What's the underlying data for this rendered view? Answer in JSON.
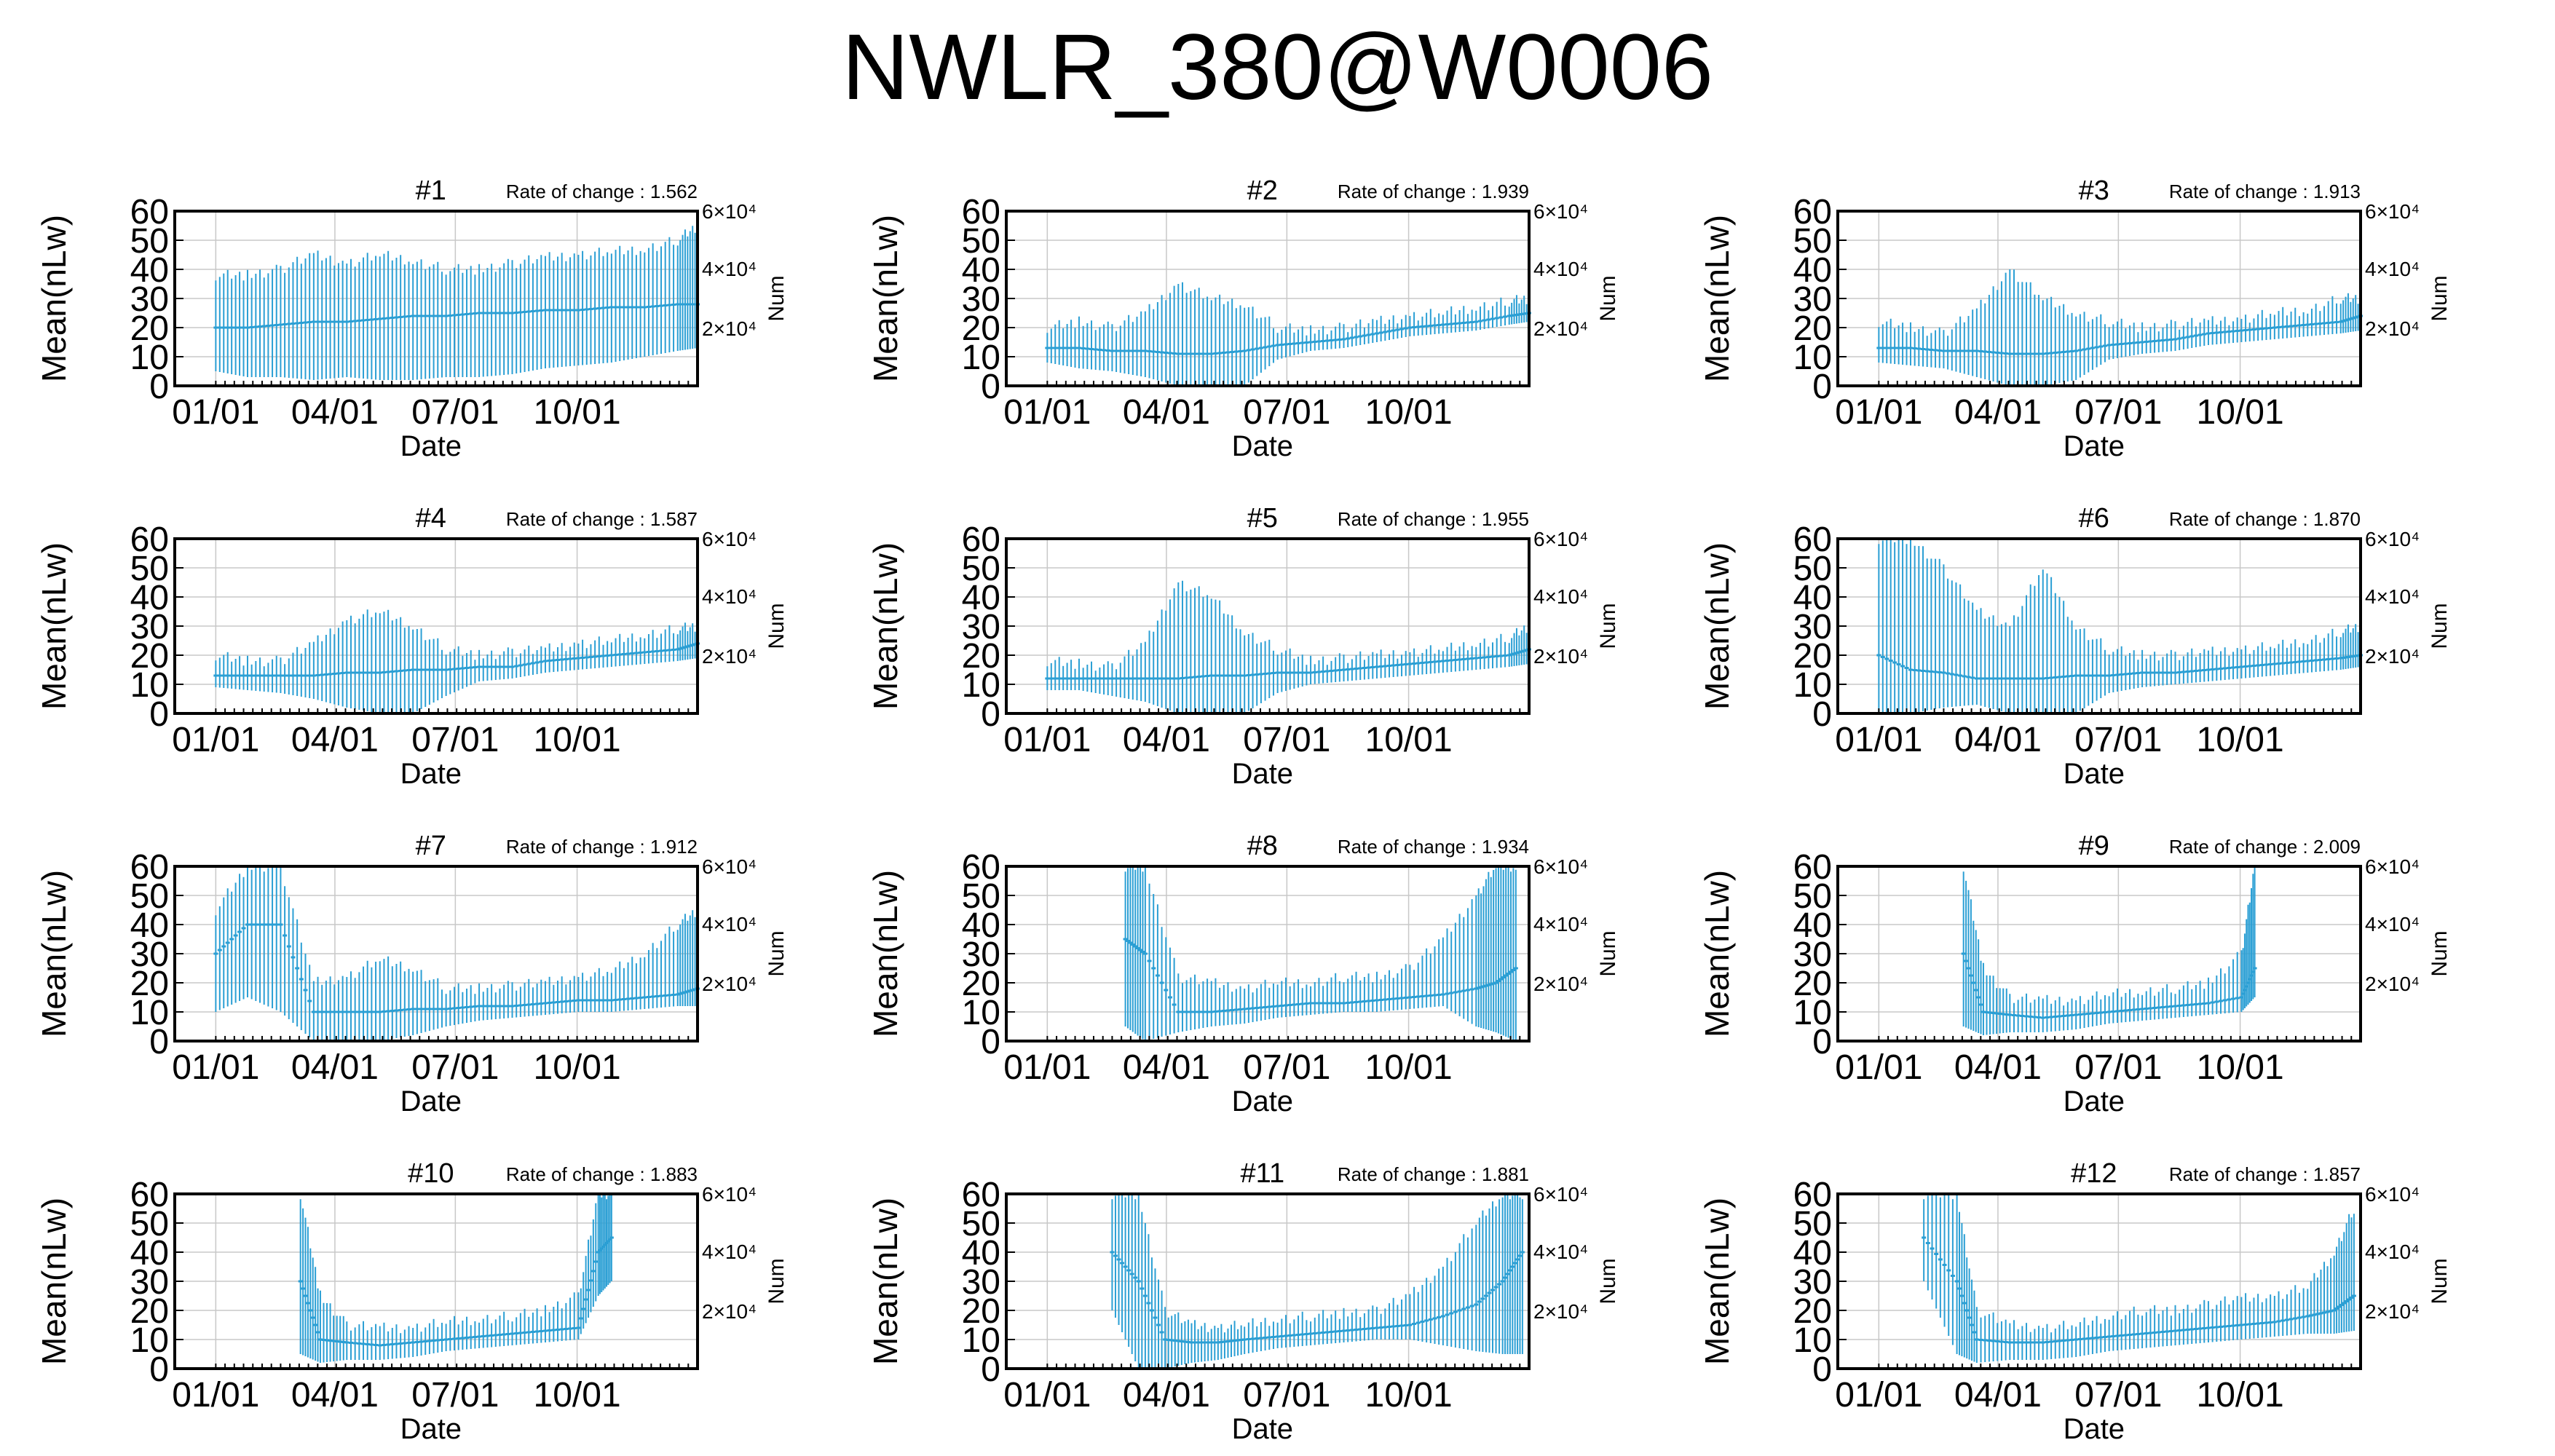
{
  "page": {
    "title": "NWLR_380@W0006"
  },
  "colors": {
    "series": "#2b9fd4",
    "frame": "#000000",
    "grid": "#c8c8c8"
  },
  "chart_data": [
    {
      "type": "line",
      "title": "#1",
      "annotation": "Rate of change : 1.562",
      "xlabel": "Date",
      "ylabel": "Mean(nLw)",
      "y2label": "Num",
      "x_ticks": [
        "01/01",
        "04/01",
        "07/01",
        "10/01"
      ],
      "y_ticks": [
        0,
        10,
        20,
        30,
        40,
        50,
        60
      ],
      "y2_ticks": [
        "2×10⁴",
        "4×10⁴",
        "6×10⁴"
      ],
      "ylim": [
        0,
        60
      ],
      "grid": true,
      "series": [
        {
          "x": [
            1,
            25,
            50,
            75,
            100,
            125,
            150,
            175,
            200,
            225,
            250,
            275,
            300,
            325,
            350,
            365
          ],
          "y": [
            20,
            20,
            21,
            22,
            22,
            23,
            24,
            24,
            25,
            25,
            26,
            26,
            27,
            27,
            28,
            28
          ],
          "low": [
            5,
            3,
            3,
            2,
            3,
            2,
            2,
            3,
            3,
            4,
            6,
            7,
            8,
            10,
            12,
            13
          ],
          "high": [
            38,
            38,
            40,
            45,
            42,
            45,
            43,
            40,
            40,
            42,
            44,
            45,
            46,
            47,
            50,
            55
          ]
        }
      ]
    },
    {
      "type": "line",
      "title": "#2",
      "annotation": "Rate of change : 1.939",
      "xlabel": "Date",
      "ylabel": "Mean(nLw)",
      "y2label": "Num",
      "x_ticks": [
        "01/01",
        "04/01",
        "07/01",
        "10/01"
      ],
      "y_ticks": [
        0,
        10,
        20,
        30,
        40,
        50,
        60
      ],
      "y2_ticks": [
        "2×10⁴",
        "4×10⁴",
        "6×10⁴"
      ],
      "ylim": [
        0,
        60
      ],
      "grid": true,
      "series": [
        {
          "x": [
            1,
            25,
            50,
            75,
            100,
            125,
            150,
            175,
            200,
            225,
            250,
            275,
            300,
            325,
            350,
            365
          ],
          "y": [
            13,
            13,
            12,
            12,
            11,
            11,
            12,
            14,
            15,
            16,
            18,
            20,
            21,
            22,
            24,
            25
          ],
          "low": [
            8,
            6,
            5,
            3,
            0,
            0,
            0,
            9,
            12,
            13,
            15,
            17,
            18,
            19,
            21,
            22
          ],
          "high": [
            20,
            22,
            20,
            25,
            35,
            30,
            28,
            20,
            19,
            20,
            22,
            24,
            25,
            27,
            29,
            30
          ]
        }
      ]
    },
    {
      "type": "line",
      "title": "#3",
      "annotation": "Rate of change : 1.913",
      "xlabel": "Date",
      "ylabel": "Mean(nLw)",
      "y2label": "Num",
      "x_ticks": [
        "01/01",
        "04/01",
        "07/01",
        "10/01"
      ],
      "y_ticks": [
        0,
        10,
        20,
        30,
        40,
        50,
        60
      ],
      "y2_ticks": [
        "2×10⁴",
        "4×10⁴",
        "6×10⁴"
      ],
      "ylim": [
        0,
        60
      ],
      "grid": true,
      "series": [
        {
          "x": [
            1,
            25,
            50,
            75,
            100,
            125,
            150,
            175,
            200,
            225,
            250,
            275,
            300,
            325,
            350,
            365
          ],
          "y": [
            13,
            13,
            12,
            12,
            11,
            11,
            12,
            14,
            15,
            16,
            18,
            19,
            20,
            21,
            22,
            24
          ],
          "low": [
            8,
            7,
            6,
            3,
            0,
            0,
            2,
            9,
            11,
            12,
            14,
            15,
            16,
            17,
            18,
            19
          ],
          "high": [
            22,
            20,
            18,
            26,
            40,
            30,
            25,
            22,
            20,
            21,
            22,
            23,
            25,
            26,
            30,
            30
          ]
        }
      ]
    },
    {
      "type": "line",
      "title": "#4",
      "annotation": "Rate of change : 1.587",
      "xlabel": "Date",
      "ylabel": "Mean(nLw)",
      "y2label": "Num",
      "x_ticks": [
        "01/01",
        "04/01",
        "07/01",
        "10/01"
      ],
      "y_ticks": [
        0,
        10,
        20,
        30,
        40,
        50,
        60
      ],
      "y2_ticks": [
        "2×10⁴",
        "4×10⁴",
        "6×10⁴"
      ],
      "ylim": [
        0,
        60
      ],
      "grid": true,
      "series": [
        {
          "x": [
            1,
            25,
            50,
            75,
            100,
            125,
            150,
            175,
            200,
            225,
            250,
            275,
            300,
            325,
            350,
            365
          ],
          "y": [
            13,
            13,
            13,
            13,
            14,
            14,
            15,
            15,
            16,
            16,
            18,
            19,
            20,
            21,
            22,
            24
          ],
          "low": [
            9,
            8,
            7,
            5,
            2,
            0,
            0,
            6,
            11,
            12,
            14,
            15,
            16,
            17,
            18,
            19
          ],
          "high": [
            20,
            18,
            18,
            24,
            32,
            35,
            30,
            22,
            20,
            21,
            22,
            24,
            25,
            27,
            29,
            30
          ]
        }
      ]
    },
    {
      "type": "line",
      "title": "#5",
      "annotation": "Rate of change : 1.955",
      "xlabel": "Date",
      "ylabel": "Mean(nLw)",
      "y2label": "Num",
      "x_ticks": [
        "01/01",
        "04/01",
        "07/01",
        "10/01"
      ],
      "y_ticks": [
        0,
        10,
        20,
        30,
        40,
        50,
        60
      ],
      "y2_ticks": [
        "2×10⁴",
        "4×10⁴",
        "6×10⁴"
      ],
      "ylim": [
        0,
        60
      ],
      "grid": true,
      "series": [
        {
          "x": [
            1,
            25,
            50,
            75,
            100,
            125,
            150,
            175,
            200,
            225,
            250,
            275,
            300,
            325,
            350,
            365
          ],
          "y": [
            12,
            12,
            12,
            12,
            12,
            13,
            13,
            14,
            14,
            15,
            16,
            17,
            18,
            19,
            20,
            22
          ],
          "low": [
            8,
            8,
            6,
            4,
            0,
            0,
            0,
            7,
            10,
            11,
            12,
            13,
            14,
            15,
            16,
            17
          ],
          "high": [
            18,
            17,
            16,
            24,
            45,
            40,
            28,
            22,
            18,
            19,
            20,
            21,
            22,
            24,
            26,
            30
          ]
        }
      ]
    },
    {
      "type": "line",
      "title": "#6",
      "annotation": "Rate of change : 1.870",
      "xlabel": "Date",
      "ylabel": "Mean(nLw)",
      "y2label": "Num",
      "x_ticks": [
        "01/01",
        "04/01",
        "07/01",
        "10/01"
      ],
      "y_ticks": [
        0,
        10,
        20,
        30,
        40,
        50,
        60
      ],
      "y2_ticks": [
        "2×10⁴",
        "4×10⁴",
        "6×10⁴"
      ],
      "ylim": [
        0,
        60
      ],
      "grid": true,
      "series": [
        {
          "x": [
            1,
            25,
            50,
            75,
            100,
            125,
            150,
            175,
            200,
            225,
            250,
            275,
            300,
            325,
            350,
            365
          ],
          "y": [
            20,
            15,
            14,
            12,
            12,
            12,
            13,
            13,
            14,
            14,
            15,
            16,
            17,
            18,
            19,
            20
          ],
          "low": [
            0,
            0,
            2,
            3,
            0,
            0,
            0,
            7,
            9,
            10,
            11,
            12,
            13,
            14,
            15,
            16
          ],
          "high": [
            60,
            60,
            50,
            35,
            30,
            50,
            30,
            22,
            20,
            20,
            21,
            22,
            23,
            25,
            28,
            30
          ]
        }
      ]
    },
    {
      "type": "line",
      "title": "#7",
      "annotation": "Rate of change : 1.912",
      "xlabel": "Date",
      "ylabel": "Mean(nLw)",
      "y2label": "Num",
      "x_ticks": [
        "01/01",
        "04/01",
        "07/01",
        "10/01"
      ],
      "y_ticks": [
        0,
        10,
        20,
        30,
        40,
        50,
        60
      ],
      "y2_ticks": [
        "2×10⁴",
        "4×10⁴",
        "6×10⁴"
      ],
      "ylim": [
        0,
        60
      ],
      "grid": true,
      "series": [
        {
          "x": [
            1,
            25,
            50,
            75,
            100,
            125,
            150,
            175,
            200,
            225,
            250,
            275,
            300,
            325,
            350,
            365
          ],
          "y": [
            30,
            40,
            40,
            10,
            10,
            10,
            11,
            11,
            12,
            12,
            13,
            14,
            14,
            15,
            16,
            18
          ],
          "low": [
            10,
            15,
            10,
            0,
            0,
            0,
            2,
            5,
            7,
            8,
            9,
            10,
            10,
            11,
            12,
            12
          ],
          "high": [
            45,
            60,
            60,
            20,
            22,
            28,
            25,
            18,
            18,
            19,
            20,
            22,
            24,
            30,
            40,
            45
          ]
        }
      ]
    },
    {
      "type": "line",
      "title": "#8",
      "annotation": "Rate of change : 1.934",
      "xlabel": "Date",
      "ylabel": "Mean(nLw)",
      "y2label": "Num",
      "x_ticks": [
        "01/01",
        "04/01",
        "07/01",
        "10/01"
      ],
      "y_ticks": [
        0,
        10,
        20,
        30,
        40,
        50,
        60
      ],
      "y2_ticks": [
        "2×10⁴",
        "4×10⁴",
        "6×10⁴"
      ],
      "ylim": [
        0,
        60
      ],
      "grid": true,
      "series": [
        {
          "x": [
            60,
            75,
            100,
            125,
            150,
            175,
            200,
            225,
            250,
            275,
            300,
            325,
            340,
            355
          ],
          "y": [
            35,
            30,
            10,
            10,
            11,
            12,
            13,
            13,
            14,
            15,
            16,
            18,
            20,
            25
          ],
          "low": [
            5,
            0,
            3,
            5,
            6,
            8,
            9,
            10,
            10,
            11,
            12,
            5,
            3,
            0
          ],
          "high": [
            60,
            60,
            22,
            20,
            18,
            20,
            20,
            22,
            22,
            25,
            35,
            50,
            60,
            60
          ]
        }
      ]
    },
    {
      "type": "line",
      "title": "#9",
      "annotation": "Rate of change : 2.009",
      "xlabel": "Date",
      "ylabel": "Mean(nLw)",
      "y2label": "Num",
      "x_ticks": [
        "01/01",
        "04/01",
        "07/01",
        "10/01"
      ],
      "y_ticks": [
        0,
        10,
        20,
        30,
        40,
        50,
        60
      ],
      "y2_ticks": [
        "2×10⁴",
        "4×10⁴",
        "6×10⁴"
      ],
      "ylim": [
        0,
        60
      ],
      "grid": true,
      "series": [
        {
          "x": [
            65,
            80,
            100,
            125,
            150,
            175,
            200,
            225,
            250,
            275,
            285
          ],
          "y": [
            30,
            10,
            9,
            8,
            9,
            10,
            11,
            12,
            13,
            15,
            25
          ],
          "low": [
            5,
            2,
            3,
            3,
            4,
            6,
            7,
            8,
            9,
            10,
            15
          ],
          "high": [
            60,
            25,
            15,
            14,
            14,
            16,
            17,
            18,
            20,
            30,
            60
          ]
        }
      ]
    },
    {
      "type": "line",
      "title": "#10",
      "annotation": "Rate of change : 1.883",
      "xlabel": "Date",
      "ylabel": "Mean(nLw)",
      "y2label": "Num",
      "x_ticks": [
        "01/01",
        "04/01",
        "07/01",
        "10/01"
      ],
      "y_ticks": [
        0,
        10,
        20,
        30,
        40,
        50,
        60
      ],
      "y2_ticks": [
        "2×10⁴",
        "4×10⁴",
        "6×10⁴"
      ],
      "ylim": [
        0,
        60
      ],
      "grid": true,
      "series": [
        {
          "x": [
            65,
            80,
            100,
            125,
            150,
            175,
            200,
            225,
            250,
            275,
            290,
            300
          ],
          "y": [
            30,
            10,
            9,
            8,
            9,
            10,
            11,
            12,
            13,
            14,
            40,
            45
          ],
          "low": [
            5,
            2,
            3,
            3,
            4,
            6,
            7,
            8,
            9,
            10,
            25,
            30
          ],
          "high": [
            60,
            25,
            15,
            14,
            14,
            16,
            17,
            18,
            20,
            25,
            60,
            60
          ]
        }
      ]
    },
    {
      "type": "line",
      "title": "#11",
      "annotation": "Rate of change : 1.881",
      "xlabel": "Date",
      "ylabel": "Mean(nLw)",
      "y2label": "Num",
      "x_ticks": [
        "01/01",
        "04/01",
        "07/01",
        "10/01"
      ],
      "y_ticks": [
        0,
        10,
        20,
        30,
        40,
        50,
        60
      ],
      "y2_ticks": [
        "2×10⁴",
        "4×10⁴",
        "6×10⁴"
      ],
      "ylim": [
        0,
        60
      ],
      "grid": true,
      "series": [
        {
          "x": [
            50,
            70,
            90,
            110,
            130,
            150,
            175,
            200,
            225,
            250,
            275,
            300,
            325,
            345,
            360
          ],
          "y": [
            40,
            30,
            10,
            9,
            9,
            10,
            11,
            12,
            13,
            14,
            15,
            18,
            22,
            30,
            40
          ],
          "low": [
            20,
            0,
            0,
            2,
            3,
            5,
            7,
            8,
            9,
            10,
            10,
            8,
            6,
            5,
            5
          ],
          "high": [
            60,
            60,
            20,
            15,
            14,
            15,
            17,
            18,
            19,
            20,
            25,
            35,
            50,
            60,
            60
          ]
        }
      ]
    },
    {
      "type": "line",
      "title": "#12",
      "annotation": "Rate of change : 1.857",
      "xlabel": "Date",
      "ylabel": "Mean(nLw)",
      "y2label": "Num",
      "x_ticks": [
        "01/01",
        "04/01",
        "07/01",
        "10/01"
      ],
      "y_ticks": [
        0,
        10,
        20,
        30,
        40,
        50,
        60
      ],
      "y2_ticks": [
        "2×10⁴",
        "4×10⁴",
        "6×10⁴"
      ],
      "ylim": [
        0,
        60
      ],
      "grid": true,
      "series": [
        {
          "x": [
            35,
            60,
            75,
            100,
            125,
            150,
            175,
            200,
            225,
            250,
            275,
            300,
            325,
            345,
            360
          ],
          "y": [
            45,
            30,
            10,
            9,
            9,
            10,
            11,
            12,
            13,
            14,
            15,
            16,
            18,
            20,
            25
          ],
          "low": [
            30,
            5,
            2,
            3,
            3,
            4,
            6,
            7,
            8,
            9,
            10,
            11,
            12,
            12,
            13
          ],
          "high": [
            60,
            60,
            20,
            15,
            14,
            15,
            18,
            20,
            20,
            22,
            24,
            25,
            28,
            40,
            55
          ]
        }
      ]
    }
  ]
}
